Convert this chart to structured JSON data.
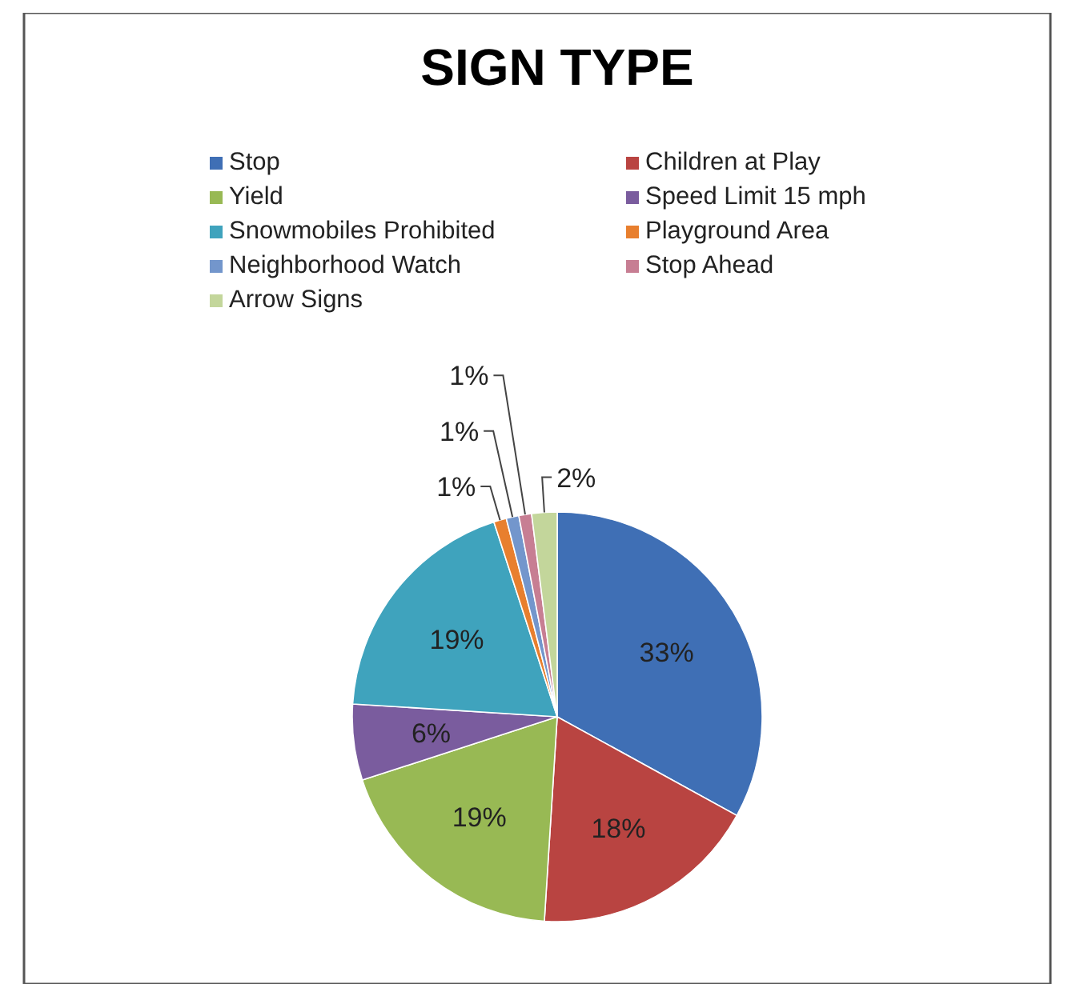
{
  "chart_data": {
    "type": "pie",
    "title": "SIGN TYPE",
    "categories": [
      "Stop",
      "Children at Play",
      "Yield",
      "Speed Limit 15 mph",
      "Snowmobiles Prohibited",
      "Playground Area",
      "Neighborhood Watch",
      "Stop Ahead",
      "Arrow Signs"
    ],
    "values": [
      33,
      18,
      19,
      6,
      19,
      1,
      1,
      1,
      2
    ],
    "value_labels": [
      "33%",
      "18%",
      "19%",
      "6%",
      "19%",
      "1%",
      "1%",
      "1%",
      "2%"
    ],
    "colors": [
      "#3f6fb5",
      "#b94441",
      "#98b954",
      "#7a5c9e",
      "#3fa3bd",
      "#e87f2e",
      "#7396cc",
      "#c77e93",
      "#c3d69b"
    ],
    "legend": "top"
  }
}
